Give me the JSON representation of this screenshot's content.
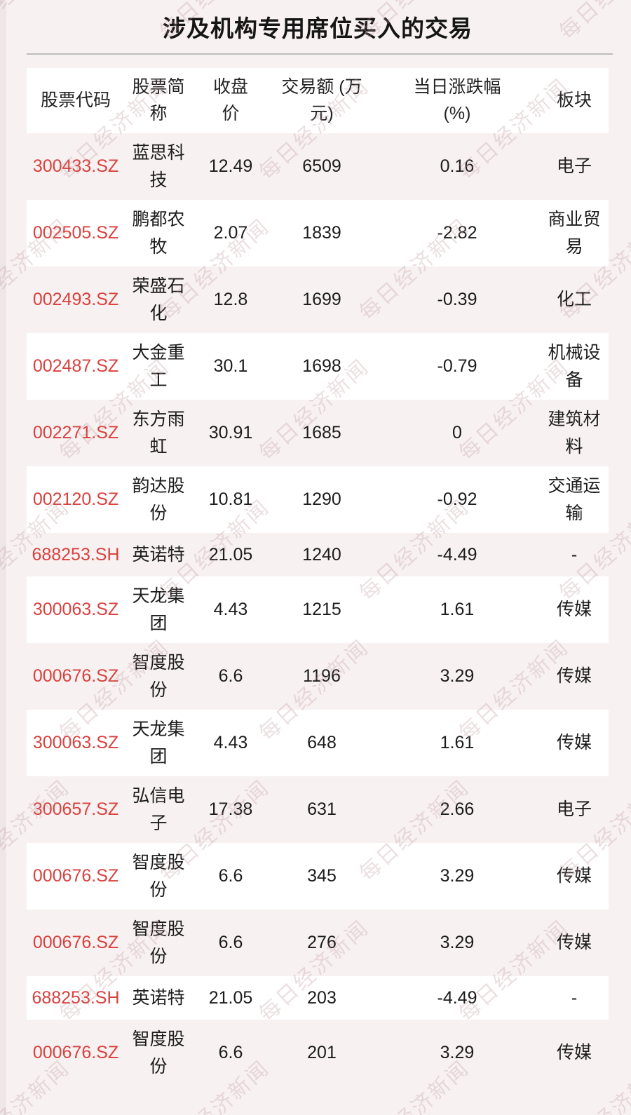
{
  "page": {
    "watermark_text": "每日经济新闻"
  },
  "colors": {
    "page_background": "#f8f1f1",
    "row_card_white": "#ffffff",
    "stock_code_red": "#d9413e",
    "text_black": "#1c1c1c",
    "divider_grey": "#bcbcbc",
    "watermark_pink": "#e9d6d7"
  },
  "chart_data": {
    "type": "table",
    "title": "涉及机构专用席位买入的交易",
    "columns": [
      {
        "key": "code",
        "label": "股票代码"
      },
      {
        "key": "name",
        "label": "股票简\n称"
      },
      {
        "key": "price",
        "label": "收盘\n价"
      },
      {
        "key": "amount",
        "label": "交易额 (万\n元)"
      },
      {
        "key": "change",
        "label": "当日涨跌幅\n(%)"
      },
      {
        "key": "sector",
        "label": "板块"
      }
    ],
    "rows": [
      {
        "code": "300433.SZ",
        "name": "蓝思科技",
        "price": "12.49",
        "amount": "6509",
        "change": "0.16",
        "sector": "电子"
      },
      {
        "code": "002505.SZ",
        "name": "鹏都农牧",
        "price": "2.07",
        "amount": "1839",
        "change": "-2.82",
        "sector": "商业贸易"
      },
      {
        "code": "002493.SZ",
        "name": "荣盛石化",
        "price": "12.8",
        "amount": "1699",
        "change": "-0.39",
        "sector": "化工"
      },
      {
        "code": "002487.SZ",
        "name": "大金重工",
        "price": "30.1",
        "amount": "1698",
        "change": "-0.79",
        "sector": "机械设备"
      },
      {
        "code": "002271.SZ",
        "name": "东方雨虹",
        "price": "30.91",
        "amount": "1685",
        "change": "0",
        "sector": "建筑材料"
      },
      {
        "code": "002120.SZ",
        "name": "韵达股份",
        "price": "10.81",
        "amount": "1290",
        "change": "-0.92",
        "sector": "交通运输"
      },
      {
        "code": "688253.SH",
        "name": "英诺特",
        "price": "21.05",
        "amount": "1240",
        "change": "-4.49",
        "sector": "-"
      },
      {
        "code": "300063.SZ",
        "name": "天龙集团",
        "price": "4.43",
        "amount": "1215",
        "change": "1.61",
        "sector": "传媒"
      },
      {
        "code": "000676.SZ",
        "name": "智度股份",
        "price": "6.6",
        "amount": "1196",
        "change": "3.29",
        "sector": "传媒"
      },
      {
        "code": "300063.SZ",
        "name": "天龙集团",
        "price": "4.43",
        "amount": "648",
        "change": "1.61",
        "sector": "传媒"
      },
      {
        "code": "300657.SZ",
        "name": "弘信电子",
        "price": "17.38",
        "amount": "631",
        "change": "2.66",
        "sector": "电子"
      },
      {
        "code": "000676.SZ",
        "name": "智度股份",
        "price": "6.6",
        "amount": "345",
        "change": "3.29",
        "sector": "传媒"
      },
      {
        "code": "000676.SZ",
        "name": "智度股份",
        "price": "6.6",
        "amount": "276",
        "change": "3.29",
        "sector": "传媒"
      },
      {
        "code": "688253.SH",
        "name": "英诺特",
        "price": "21.05",
        "amount": "203",
        "change": "-4.49",
        "sector": "-"
      },
      {
        "code": "000676.SZ",
        "name": "智度股份",
        "price": "6.6",
        "amount": "201",
        "change": "3.29",
        "sector": "传媒"
      }
    ]
  }
}
